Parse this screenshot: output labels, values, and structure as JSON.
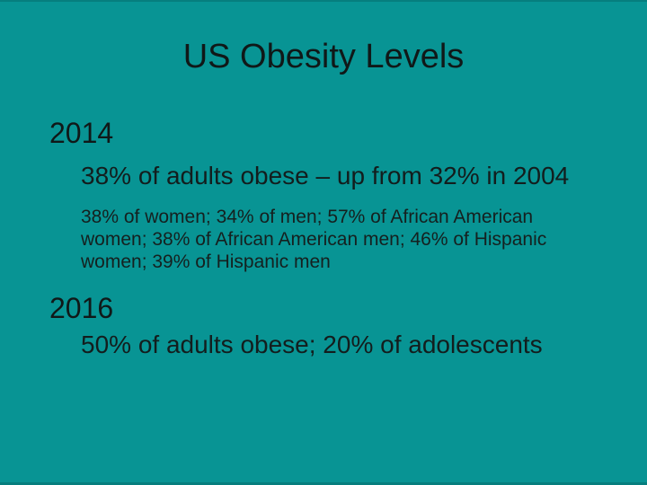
{
  "slide": {
    "title": "US Obesity Levels",
    "sections": [
      {
        "year": "2014",
        "bullet": "38% of adults obese – up from 32% in 2004",
        "detail": "38% of women; 34% of men; 57% of African American women; 38% of African American men; 46% of Hispanic women; 39% of Hispanic men"
      },
      {
        "year": "2016",
        "bullet": "50% of adults obese; 20% of adolescents"
      }
    ],
    "colors": {
      "background": "#089494",
      "edge": "#067e7e",
      "text": "#131d1d"
    }
  }
}
